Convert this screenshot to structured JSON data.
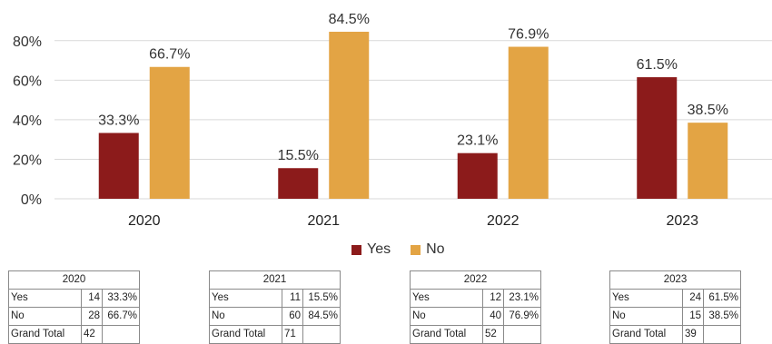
{
  "chart_data": {
    "type": "bar",
    "categories": [
      "2020",
      "2021",
      "2022",
      "2023"
    ],
    "series": [
      {
        "name": "Yes",
        "color": "#8c1b1b",
        "values": [
          33.3,
          15.5,
          23.1,
          61.5
        ],
        "labels": [
          "33.3%",
          "15.5%",
          "23.1%",
          "61.5%"
        ]
      },
      {
        "name": "No",
        "color": "#e3a444",
        "values": [
          66.7,
          84.5,
          76.9,
          38.5
        ],
        "labels": [
          "66.7%",
          "84.5%",
          "76.9%",
          "38.5%"
        ]
      }
    ],
    "yticks": [
      0,
      20,
      40,
      60,
      80
    ],
    "ytick_labels": [
      "0%",
      "20%",
      "40%",
      "60%",
      "80%"
    ],
    "ylim": [
      0,
      90
    ],
    "grid": true,
    "legend": "bottom-center"
  },
  "tables": [
    {
      "year": "2020",
      "rows": [
        {
          "label": "Yes",
          "count": "14",
          "pct": "33.3%"
        },
        {
          "label": "No",
          "count": "28",
          "pct": "66.7%"
        }
      ],
      "total_label": "Grand Total",
      "total": "42"
    },
    {
      "year": "2021",
      "rows": [
        {
          "label": "Yes",
          "count": "11",
          "pct": "15.5%"
        },
        {
          "label": "No",
          "count": "60",
          "pct": "84.5%"
        }
      ],
      "total_label": "Grand Total",
      "total": "71"
    },
    {
      "year": "2022",
      "rows": [
        {
          "label": "Yes",
          "count": "12",
          "pct": "23.1%"
        },
        {
          "label": "No",
          "count": "40",
          "pct": "76.9%"
        }
      ],
      "total_label": "Grand Total",
      "total": "52"
    },
    {
      "year": "2023",
      "rows": [
        {
          "label": "Yes",
          "count": "24",
          "pct": "61.5%"
        },
        {
          "label": "No",
          "count": "15",
          "pct": "38.5%"
        }
      ],
      "total_label": "Grand Total",
      "total": "39"
    }
  ]
}
